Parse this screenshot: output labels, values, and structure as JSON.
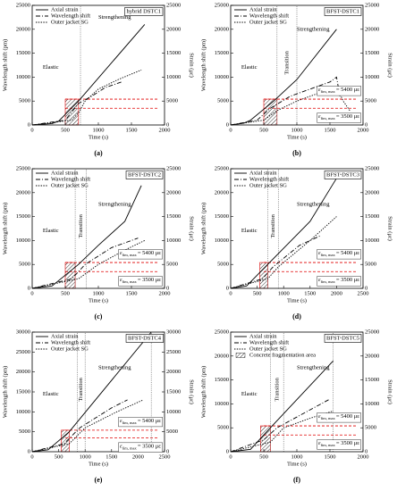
{
  "chart_data": [
    {
      "type": "line",
      "title": "hybrid DSTC1",
      "label": "(a)",
      "xlabel": "Time (s)",
      "ylabel": "Wavelength shift (pm)",
      "y2label": "Strain (με)",
      "xlim": [
        0,
        2000
      ],
      "xticks": [
        0,
        500,
        1000,
        1500,
        2000
      ],
      "ylim": [
        0,
        25000
      ],
      "yticks": [
        0,
        5000,
        10000,
        15000,
        20000,
        25000
      ],
      "y2lim": [
        0,
        25000
      ],
      "y2ticks": [
        0,
        5000,
        10000,
        15000,
        20000,
        25000
      ],
      "series": [
        {
          "name": "Axial strain",
          "color": "#000000",
          "style": "solid",
          "axis": "y2",
          "x": [
            0,
            300,
            400,
            700,
            1700
          ],
          "values": [
            0,
            300,
            800,
            5000,
            21000
          ]
        },
        {
          "name": "Wavelength shift",
          "color": "#000000",
          "style": "dashdot",
          "x": [
            0,
            500,
            700,
            900,
            1100,
            1350
          ],
          "values": [
            0,
            1000,
            4500,
            6000,
            7800,
            9000
          ]
        },
        {
          "name": "Outer jacket SG",
          "color": "#000000",
          "style": "dotted",
          "x": [
            0,
            600,
            700,
            800,
            1000,
            1300,
            1650
          ],
          "values": [
            0,
            1000,
            2500,
            5000,
            7500,
            9500,
            11500
          ]
        }
      ],
      "hlines": [
        5400,
        3500
      ],
      "hline_color": "#e00000",
      "vlines": [
        730
      ],
      "hatch": {
        "x": [
          500,
          700
        ],
        "y": [
          0,
          5400
        ]
      },
      "regions": {
        "elastic": "Elastic",
        "strengthening": "Strengthening"
      }
    },
    {
      "type": "line",
      "title": "BFST-DSTC1",
      "label": "(b)",
      "xlabel": "Time (s)",
      "ylabel": "Wavelength shift (pm)",
      "y2label": "Strain (με)",
      "xlim": [
        0,
        2000
      ],
      "xticks": [
        0,
        500,
        1000,
        1500,
        2000
      ],
      "ylim": [
        0,
        25000
      ],
      "yticks": [
        0,
        5000,
        10000,
        15000,
        20000,
        25000
      ],
      "y2lim": [
        0,
        25000
      ],
      "y2ticks": [
        0,
        5000,
        10000,
        15000,
        20000,
        25000
      ],
      "series": [
        {
          "name": "Axial strain",
          "color": "#000000",
          "style": "solid",
          "axis": "y2",
          "x": [
            0,
            200,
            300,
            650,
            1000,
            1600
          ],
          "values": [
            0,
            400,
            1000,
            5000,
            9500,
            20000
          ]
        },
        {
          "name": "Wavelength shift",
          "color": "#000000",
          "style": "dashdot",
          "x": [
            0,
            400,
            600,
            900,
            1200,
            1500,
            1600,
            1650
          ],
          "values": [
            0,
            1000,
            3500,
            6000,
            7500,
            9000,
            10000,
            6000
          ]
        },
        {
          "name": "Outer jacket SG",
          "color": "#000000",
          "style": "dotted",
          "x": [
            0,
            500,
            700,
            1000,
            1400,
            1600,
            1700,
            1800
          ],
          "values": [
            0,
            1000,
            3000,
            5000,
            7000,
            8000,
            5000,
            3000
          ]
        }
      ],
      "hlines": [
        5400,
        3500
      ],
      "hline_color": "#e00000",
      "vlines": [
        700,
        1000
      ],
      "hatch": {
        "x": [
          500,
          700
        ],
        "y": [
          0,
          5400
        ]
      },
      "regions": {
        "elastic": "Elastic",
        "transition": "Transition",
        "strengthening": "Strengthening"
      },
      "annotations": [
        {
          "symbol": "ε",
          "sub": "fim, max",
          "text": "= 5400 με"
        },
        {
          "symbol": "ε",
          "sub": "fim, max",
          "text": "= 3500 με"
        }
      ]
    },
    {
      "type": "line",
      "title": "BFST-DSTC2",
      "label": "(c)",
      "xlabel": "Time (s)",
      "ylabel": "Wavelength shift (pm)",
      "y2label": "Strain (με)",
      "xlim": [
        0,
        2000
      ],
      "xticks": [
        0,
        500,
        1000,
        1500,
        2000
      ],
      "ylim": [
        0,
        25000
      ],
      "yticks": [
        0,
        5000,
        10000,
        15000,
        20000,
        25000
      ],
      "y2lim": [
        0,
        25000
      ],
      "y2ticks": [
        0,
        5000,
        10000,
        15000,
        20000,
        25000
      ],
      "series": [
        {
          "name": "Axial strain",
          "color": "#000000",
          "style": "solid",
          "axis": "y2",
          "x": [
            0,
            300,
            700,
            1000,
            1400,
            1650
          ],
          "values": [
            0,
            500,
            5000,
            9000,
            14000,
            21500
          ]
        },
        {
          "name": "Wavelength shift",
          "color": "#000000",
          "style": "dashdot",
          "x": [
            0,
            600,
            800,
            1200,
            1600
          ],
          "values": [
            0,
            2000,
            5000,
            8500,
            10500
          ]
        },
        {
          "name": "Outer jacket SG",
          "color": "#000000",
          "style": "dotted",
          "x": [
            0,
            700,
            1000,
            1400,
            1700
          ],
          "values": [
            0,
            2000,
            5000,
            8000,
            10000
          ]
        }
      ],
      "hlines": [
        5400,
        3500
      ],
      "hline_color": "#e00000",
      "vlines": [
        650,
        820
      ],
      "hatch": {
        "x": [
          500,
          650
        ],
        "y": [
          0,
          5400
        ]
      },
      "regions": {
        "elastic": "Elastic",
        "transition": "Transition",
        "strengthening": "Strengthening"
      },
      "annotations": [
        {
          "symbol": "ε",
          "sub": "fim, max",
          "text": "= 5400 με"
        },
        {
          "symbol": "ε",
          "sub": "fim, max",
          "text": "= 3500 με"
        }
      ]
    },
    {
      "type": "line",
      "title": "BFST-DSTC3",
      "label": "(d)",
      "xlabel": "Time (s)",
      "ylabel": "Wavelength shift (pm)",
      "y2label": "Strain (με)",
      "xlim": [
        0,
        2500
      ],
      "xticks": [
        0,
        500,
        1000,
        1500,
        2000,
        2500
      ],
      "ylim": [
        0,
        25000
      ],
      "yticks": [
        0,
        5000,
        10000,
        15000,
        20000,
        25000
      ],
      "y2lim": [
        0,
        25000
      ],
      "y2ticks": [
        0,
        5000,
        10000,
        15000,
        20000,
        25000
      ],
      "series": [
        {
          "name": "Axial strain",
          "color": "#000000",
          "style": "solid",
          "axis": "y2",
          "x": [
            0,
            300,
            700,
            1500,
            2000
          ],
          "values": [
            0,
            500,
            5000,
            14000,
            23000
          ]
        },
        {
          "name": "Wavelength shift",
          "color": "#000000",
          "style": "dashdot",
          "x": [
            0,
            600,
            800,
            1300,
            1700
          ],
          "values": [
            0,
            2000,
            4500,
            9000,
            11000
          ]
        },
        {
          "name": "Outer jacket SG",
          "color": "#000000",
          "style": "dotted",
          "x": [
            0,
            700,
            900,
            1500,
            2000
          ],
          "values": [
            0,
            2000,
            4500,
            10000,
            15000
          ]
        }
      ],
      "hlines": [
        5400,
        3500
      ],
      "hline_color": "#e00000",
      "vlines": [
        700,
        900
      ],
      "hatch": {
        "x": [
          550,
          700
        ],
        "y": [
          0,
          5400
        ]
      },
      "regions": {
        "elastic": "Elastic",
        "transition": "Transition",
        "strengthening": "Strengthening"
      },
      "annotations": [
        {
          "symbol": "ε",
          "sub": "fim, max",
          "text": "= 5400 με"
        },
        {
          "symbol": "ε",
          "sub": "fim, max",
          "text": "= 3500 με"
        }
      ]
    },
    {
      "type": "line",
      "title": "BFST-DSTC4",
      "label": "(e)",
      "xlabel": "Time (s)",
      "ylabel": "Wavelength shift (pm)",
      "y2label": "Strain (με)",
      "xlim": [
        0,
        2500
      ],
      "xticks": [
        0,
        500,
        1000,
        1500,
        2000,
        2500
      ],
      "ylim": [
        0,
        30000
      ],
      "yticks": [
        0,
        5000,
        10000,
        15000,
        20000,
        25000,
        30000
      ],
      "y2lim": [
        0,
        30000
      ],
      "y2ticks": [
        0,
        5000,
        10000,
        15000,
        20000,
        25000,
        30000
      ],
      "series": [
        {
          "name": "Axial strain",
          "color": "#000000",
          "style": "solid",
          "axis": "y2",
          "x": [
            0,
            300,
            700,
            2250
          ],
          "values": [
            0,
            500,
            5000,
            30000
          ]
        },
        {
          "name": "Wavelength shift",
          "color": "#000000",
          "style": "dashdot",
          "x": [
            0,
            600,
            900,
            1500,
            1800
          ],
          "values": [
            0,
            2000,
            6000,
            11000,
            13000
          ]
        },
        {
          "name": "Outer jacket SG",
          "color": "#000000",
          "style": "dotted",
          "x": [
            0,
            700,
            1000,
            1600,
            2100
          ],
          "values": [
            0,
            2000,
            6000,
            10000,
            13000
          ]
        }
      ],
      "hlines": [
        5400,
        3500
      ],
      "hline_color": "#e00000",
      "vlines": [
        850,
        1000,
        2250
      ],
      "hatch": {
        "x": [
          550,
          700
        ],
        "y": [
          0,
          5400
        ]
      },
      "regions": {
        "elastic": "Elastic",
        "transition": "Transition",
        "strengthening": "Strengthening"
      },
      "annotations": [
        {
          "symbol": "ε",
          "sub": "fim, max",
          "text": "= 5400 με"
        },
        {
          "symbol": "ε",
          "sub": "fim, max",
          "text": "= 3500 με"
        }
      ]
    },
    {
      "type": "line",
      "title": "BFST-DSTC5",
      "label": "(f)",
      "xlabel": "Time (s)",
      "ylabel": "Wavelength shift (pm)",
      "y2label": "Strain (με)",
      "xlim": [
        0,
        2000
      ],
      "xticks": [
        0,
        500,
        1000,
        1500,
        2000
      ],
      "ylim": [
        0,
        25000
      ],
      "yticks": [
        0,
        5000,
        10000,
        15000,
        20000,
        25000
      ],
      "y2lim": [
        0,
        25000
      ],
      "y2ticks": [
        0,
        5000,
        10000,
        15000,
        20000,
        25000
      ],
      "series": [
        {
          "name": "Axial strain",
          "color": "#000000",
          "style": "solid",
          "axis": "y2",
          "x": [
            0,
            300,
            600,
            1550
          ],
          "values": [
            0,
            500,
            5000,
            19000
          ]
        },
        {
          "name": "Wavelength shift",
          "color": "#000000",
          "style": "dashdot",
          "x": [
            0,
            500,
            700,
            1100,
            1500
          ],
          "values": [
            0,
            2500,
            5000,
            8000,
            11000
          ]
        },
        {
          "name": "Outer jacket SG",
          "color": "#000000",
          "style": "dotted",
          "x": [
            0,
            600,
            800,
            1200,
            1550
          ],
          "values": [
            0,
            2000,
            5000,
            7000,
            8500
          ]
        }
      ],
      "hlines": [
        5400,
        3500
      ],
      "hline_color": "#e00000",
      "vlines": [
        600,
        800,
        1550
      ],
      "hatch": {
        "x": [
          450,
          600
        ],
        "y": [
          0,
          5400
        ]
      },
      "hatch_name": "Concrete fragmentation area",
      "regions": {
        "elastic": "Elastic",
        "transition": "Transition",
        "strengthening": "Strengthening"
      },
      "annotations": [
        {
          "symbol": "ε",
          "sub": "fim, max",
          "text": "= 5400 με"
        },
        {
          "symbol": "ε",
          "sub": "fim, max",
          "text": "= 3500 με"
        }
      ]
    }
  ]
}
